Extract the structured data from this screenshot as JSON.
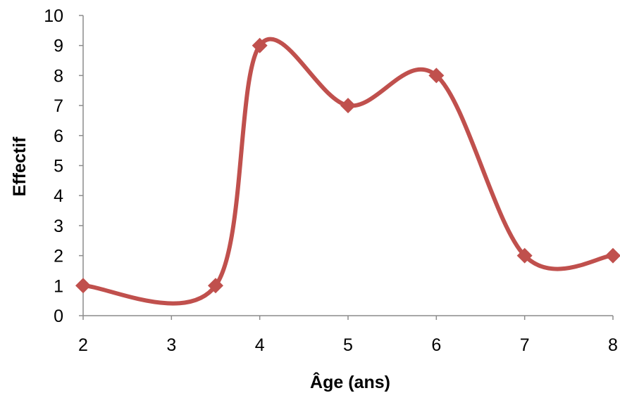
{
  "chart_data": {
    "type": "line",
    "xlabel": "Âge (ans)",
    "ylabel": "Effectif",
    "xlim": [
      2,
      8
    ],
    "ylim": [
      0,
      10
    ],
    "x_ticks": [
      2,
      3,
      4,
      5,
      6,
      7,
      8
    ],
    "y_ticks": [
      0,
      1,
      2,
      3,
      4,
      5,
      6,
      7,
      8,
      9,
      10
    ],
    "grid": false,
    "legend": "none",
    "smooth": true,
    "series": [
      {
        "color": "#c0504d",
        "marker": "diamond",
        "points": [
          {
            "x": 2,
            "y": 1
          },
          {
            "x": 3.5,
            "y": 1
          },
          {
            "x": 4,
            "y": 9
          },
          {
            "x": 5,
            "y": 7
          },
          {
            "x": 6,
            "y": 8
          },
          {
            "x": 7,
            "y": 2
          },
          {
            "x": 8,
            "y": 2
          }
        ]
      }
    ]
  }
}
